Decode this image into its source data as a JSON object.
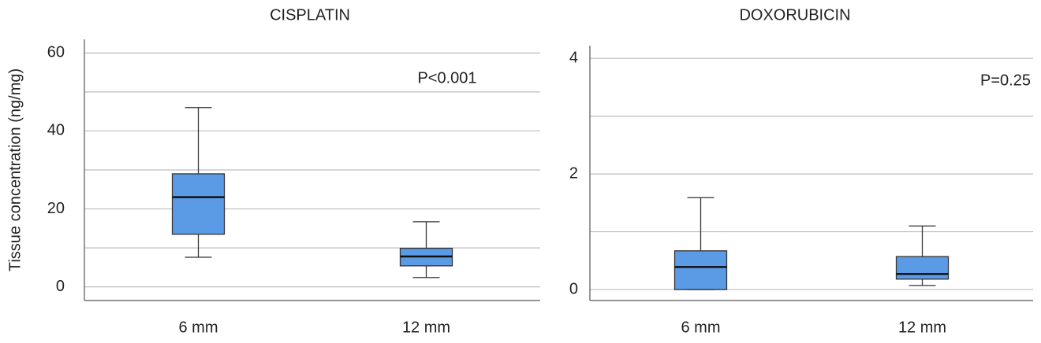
{
  "chart_data": [
    {
      "type": "box",
      "title": "CISPLATIN",
      "ylabel": "Tissue concentration (ng/mg)",
      "annotation": "P<0.001",
      "categories": [
        "6 mm",
        "12 mm"
      ],
      "color": "#5b9be6",
      "boxes": [
        {
          "whislo": 7.6,
          "q1": 13.5,
          "med": 23,
          "q3": 29,
          "whishi": 46
        },
        {
          "whislo": 2.4,
          "q1": 5.4,
          "med": 7.8,
          "q3": 9.9,
          "whishi": 16.7
        }
      ],
      "ylim": [
        -3.5,
        63.5
      ],
      "yticks": [
        0,
        20,
        40,
        60
      ],
      "minor_yticks": [
        10,
        30,
        50
      ],
      "grid": true
    },
    {
      "type": "box",
      "title": "DOXORUBICIN",
      "annotation": "P=0.25",
      "categories": [
        "6 mm",
        "12 mm"
      ],
      "color": "#5b9be6",
      "boxes": [
        {
          "whislo": 0,
          "q1": 0,
          "med": 0.39,
          "q3": 0.67,
          "whishi": 1.59
        },
        {
          "whislo": 0.07,
          "q1": 0.18,
          "med": 0.27,
          "q3": 0.57,
          "whishi": 1.1
        }
      ],
      "ylim": [
        -0.19,
        4.22
      ],
      "yticks": [
        0,
        2,
        4
      ],
      "minor_yticks": [
        1,
        3
      ],
      "grid": true
    }
  ]
}
